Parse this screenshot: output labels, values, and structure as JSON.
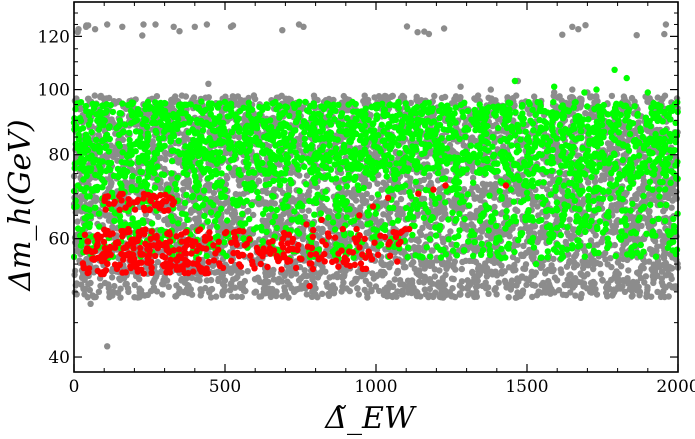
{
  "chart_data": {
    "type": "scatter",
    "xlabel": "Δ̃_EW",
    "ylabel": "Δm_h(GeV)",
    "xlim": [
      0,
      2000
    ],
    "ylim": [
      38,
      135
    ],
    "yscale": "log",
    "xticks": [
      0,
      500,
      1000,
      1500,
      2000
    ],
    "yticks": [
      40,
      60,
      80,
      100,
      120
    ],
    "grid": false,
    "series": [
      {
        "color": "#8c8c8c",
        "regions": [
          {
            "x_range": [
              0,
              2000
            ],
            "y_range": [
              49,
              98
            ],
            "density": "dense"
          },
          {
            "x_range": [
              0,
              2000
            ],
            "y_range": [
              120,
              125
            ],
            "density": "sparse"
          }
        ],
        "points": [
          [
            15,
            123
          ],
          [
            40,
            124
          ],
          [
            70,
            123
          ],
          [
            110,
            125
          ],
          [
            160,
            124
          ],
          [
            230,
            125
          ],
          [
            270,
            125
          ],
          [
            330,
            124
          ],
          [
            400,
            124
          ],
          [
            440,
            125
          ],
          [
            520,
            124
          ],
          [
            745,
            125
          ],
          [
            760,
            124
          ],
          [
            1160,
            122
          ],
          [
            1175,
            121
          ],
          [
            1650,
            124
          ],
          [
            1670,
            123
          ],
          [
            1960,
            125
          ],
          [
            445,
            102
          ],
          [
            1280,
            101
          ],
          [
            1380,
            100
          ],
          [
            1590,
            99
          ],
          [
            1650,
            100
          ],
          [
            1470,
            103
          ],
          [
            1700,
            99
          ],
          [
            110,
            41.5
          ],
          [
            55,
            48
          ],
          [
            180,
            50
          ],
          [
            500,
            52
          ]
        ]
      },
      {
        "color": "#00ff00",
        "regions": [
          {
            "x_range": [
              0,
              2000
            ],
            "y_range": [
              75,
              96
            ],
            "density": "dense"
          },
          {
            "x_range": [
              0,
              2000
            ],
            "y_range": [
              56,
              75
            ],
            "density": "medium"
          }
        ],
        "points": [
          [
            1460,
            103
          ],
          [
            1690,
            99
          ],
          [
            1730,
            100
          ],
          [
            1790,
            107
          ],
          [
            1830,
            104
          ],
          [
            1900,
            99
          ],
          [
            1590,
            101
          ],
          [
            1530,
            55
          ]
        ]
      },
      {
        "color": "#ff0000",
        "regions": [
          {
            "x_range": [
              25,
              450
            ],
            "y_range": [
              53,
              62
            ],
            "density": "dense"
          },
          {
            "x_range": [
              100,
              340
            ],
            "y_range": [
              66,
              70
            ],
            "density": "dense"
          },
          {
            "x_range": [
              450,
              1100
            ],
            "y_range": [
              54,
              62
            ],
            "density": "medium"
          }
        ],
        "points": [
          [
            780,
            51
          ],
          [
            770,
            63
          ],
          [
            820,
            64
          ],
          [
            890,
            62
          ],
          [
            945,
            65
          ],
          [
            990,
            67
          ],
          [
            1040,
            69
          ],
          [
            1140,
            70
          ],
          [
            1190,
            71
          ],
          [
            1230,
            72
          ],
          [
            1430,
            72
          ],
          [
            1110,
            62
          ],
          [
            650,
            57
          ],
          [
            720,
            58
          ]
        ]
      }
    ]
  }
}
